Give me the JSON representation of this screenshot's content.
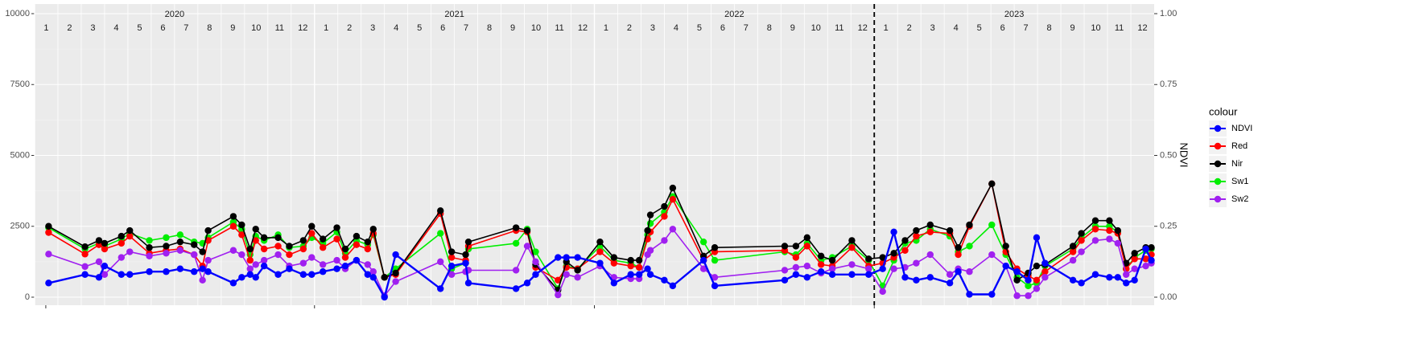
{
  "chart_data": {
    "type": "line",
    "year_labels": [
      "2020",
      "2021",
      "2022",
      "2023"
    ],
    "month_labels": [
      1,
      2,
      3,
      4,
      5,
      6,
      7,
      8,
      9,
      10,
      11,
      12
    ],
    "x": [
      2020.05,
      2020.18,
      2020.23,
      2020.25,
      2020.31,
      2020.34,
      2020.41,
      2020.47,
      2020.52,
      2020.57,
      2020.6,
      2020.62,
      2020.71,
      2020.74,
      2020.77,
      2020.79,
      2020.82,
      2020.87,
      2020.91,
      2020.96,
      2020.99,
      2021.03,
      2021.08,
      2021.11,
      2021.15,
      2021.19,
      2021.21,
      2021.25,
      2021.29,
      2021.45,
      2021.49,
      2021.54,
      2021.55,
      2021.72,
      2021.76,
      2021.79,
      2021.87,
      2021.9,
      2021.94,
      2022.02,
      2022.07,
      2022.13,
      2022.16,
      2022.19,
      2022.2,
      2022.25,
      2022.28,
      2022.39,
      2022.43,
      2022.68,
      2022.72,
      2022.76,
      2022.81,
      2022.85,
      2022.92,
      2022.98,
      2023.03,
      2023.07,
      2023.11,
      2023.15,
      2023.2,
      2023.27,
      2023.3,
      2023.34,
      2023.42,
      2023.47,
      2023.51,
      2023.55,
      2023.58,
      2023.61,
      2023.71,
      2023.74,
      2023.79,
      2023.84,
      2023.87,
      2023.9,
      2023.93,
      2023.97,
      2023.99
    ],
    "xlim": [
      2020,
      2024
    ],
    "xticks": [
      2020.04,
      2021,
      2022,
      2023
    ],
    "vline": 2023,
    "ylim": [
      0,
      10000
    ],
    "yticks": [
      0,
      2500,
      5000,
      7500,
      10000
    ],
    "y2lim": [
      0,
      1
    ],
    "y2ticks": [
      {
        "value": 0,
        "label": "0.00"
      },
      {
        "value": 0.25,
        "label": "0.25"
      },
      {
        "value": 0.5,
        "label": "0.50"
      },
      {
        "value": 0.75,
        "label": "0.75"
      },
      {
        "value": 1,
        "label": "1.00"
      }
    ],
    "y2_label": "NDVI",
    "legend_title": "colour",
    "legend_position": "right",
    "grid": true,
    "series": [
      {
        "name": "NDVI",
        "color": "#0000ff",
        "axis": "y2",
        "values": [
          0.05,
          0.08,
          0.07,
          0.11,
          0.08,
          0.08,
          0.09,
          0.09,
          0.1,
          0.09,
          0.1,
          0.09,
          0.05,
          0.07,
          0.08,
          0.07,
          0.11,
          0.08,
          0.1,
          0.08,
          0.08,
          0.09,
          0.1,
          0.11,
          0.13,
          0.08,
          0.07,
          0,
          0.15,
          0.03,
          0.11,
          0.12,
          0.05,
          0.03,
          0.05,
          0.08,
          0.14,
          0.14,
          0.14,
          0.12,
          0.05,
          0.08,
          0.08,
          0.1,
          0.08,
          0.06,
          0.04,
          0.13,
          0.04,
          0.06,
          0.08,
          0.07,
          0.09,
          0.08,
          0.08,
          0.08,
          0.1,
          0.23,
          0.07,
          0.06,
          0.07,
          0.05,
          0.09,
          0.01,
          0.01,
          0.11,
          0.09,
          0.06,
          0.21,
          0.12,
          0.06,
          0.05,
          0.08,
          0.07,
          0.07,
          0.05,
          0.06,
          0.17,
          0.13
        ]
      },
      {
        "name": "Red",
        "color": "#ff0000",
        "values": [
          2280,
          1520,
          1850,
          1700,
          1900,
          2150,
          1550,
          1650,
          1700,
          1500,
          1100,
          2000,
          2500,
          2200,
          1300,
          2000,
          1700,
          1800,
          1500,
          1700,
          2250,
          1750,
          2050,
          1400,
          1850,
          1700,
          2250,
          700,
          800,
          2950,
          1400,
          1300,
          1800,
          2350,
          2300,
          1050,
          600,
          1050,
          1000,
          1600,
          1200,
          1100,
          1050,
          2050,
          2300,
          2850,
          3450,
          1300,
          1600,
          1650,
          1400,
          1800,
          1150,
          1100,
          1750,
          1100,
          1200,
          1400,
          1650,
          2150,
          2300,
          2250,
          1500,
          2500,
          4000,
          1600,
          1000,
          750,
          600,
          900,
          1600,
          2000,
          2400,
          2350,
          2250,
          1000,
          1350,
          1350,
          1500
        ]
      },
      {
        "name": "Nir",
        "color": "#000000",
        "values": [
          2500,
          1780,
          2000,
          1900,
          2150,
          2350,
          1750,
          1800,
          1950,
          1850,
          1600,
          2350,
          2850,
          2550,
          1700,
          2400,
          2100,
          2100,
          1800,
          2000,
          2500,
          2050,
          2450,
          1700,
          2150,
          1950,
          2400,
          700,
          850,
          3050,
          1600,
          1500,
          1950,
          2450,
          2350,
          1150,
          250,
          1250,
          950,
          1950,
          1400,
          1300,
          1300,
          2350,
          2900,
          3200,
          3850,
          1450,
          1750,
          1800,
          1800,
          2100,
          1450,
          1300,
          2000,
          1350,
          1400,
          1550,
          2000,
          2350,
          2550,
          2350,
          1750,
          2550,
          4000,
          1800,
          600,
          850,
          1100,
          1150,
          1800,
          2250,
          2700,
          2700,
          2350,
          1200,
          1550,
          1750,
          1750
        ]
      },
      {
        "name": "Sw1",
        "color": "#00ee00",
        "values": [
          2450,
          1700,
          1900,
          1800,
          2050,
          2250,
          2000,
          2100,
          2200,
          1950,
          1900,
          2100,
          2650,
          2400,
          1500,
          2150,
          2000,
          2200,
          1750,
          1800,
          2100,
          1900,
          2300,
          1550,
          2000,
          1850,
          2200,
          700,
          1000,
          2250,
          1000,
          1200,
          1700,
          1900,
          2400,
          1600,
          300,
          1100,
          1000,
          1800,
          1300,
          1200,
          1050,
          2200,
          2600,
          3000,
          3550,
          1950,
          1300,
          1600,
          1500,
          1900,
          1300,
          1400,
          1800,
          1300,
          400,
          1300,
          1900,
          2000,
          2400,
          2150,
          1600,
          1800,
          2550,
          1500,
          700,
          400,
          500,
          1100,
          1700,
          2100,
          2500,
          2500,
          2300,
          1000,
          1400,
          1650,
          1700
        ]
      },
      {
        "name": "Sw2",
        "color": "#a020f0",
        "values": [
          1520,
          1080,
          1250,
          800,
          1400,
          1600,
          1450,
          1550,
          1650,
          1500,
          600,
          1300,
          1650,
          1500,
          1000,
          1150,
          1300,
          1500,
          1100,
          1200,
          1400,
          1150,
          1300,
          1000,
          1300,
          1150,
          900,
          50,
          550,
          1250,
          800,
          900,
          950,
          950,
          1800,
          1250,
          80,
          800,
          700,
          1100,
          700,
          650,
          650,
          1500,
          1650,
          2000,
          2400,
          1000,
          700,
          950,
          1050,
          1100,
          850,
          1000,
          1150,
          1000,
          200,
          1000,
          1050,
          1200,
          1500,
          800,
          1000,
          900,
          1500,
          1100,
          50,
          50,
          300,
          700,
          1300,
          1600,
          2000,
          2050,
          1900,
          800,
          1000,
          1100,
          1200
        ]
      }
    ]
  }
}
